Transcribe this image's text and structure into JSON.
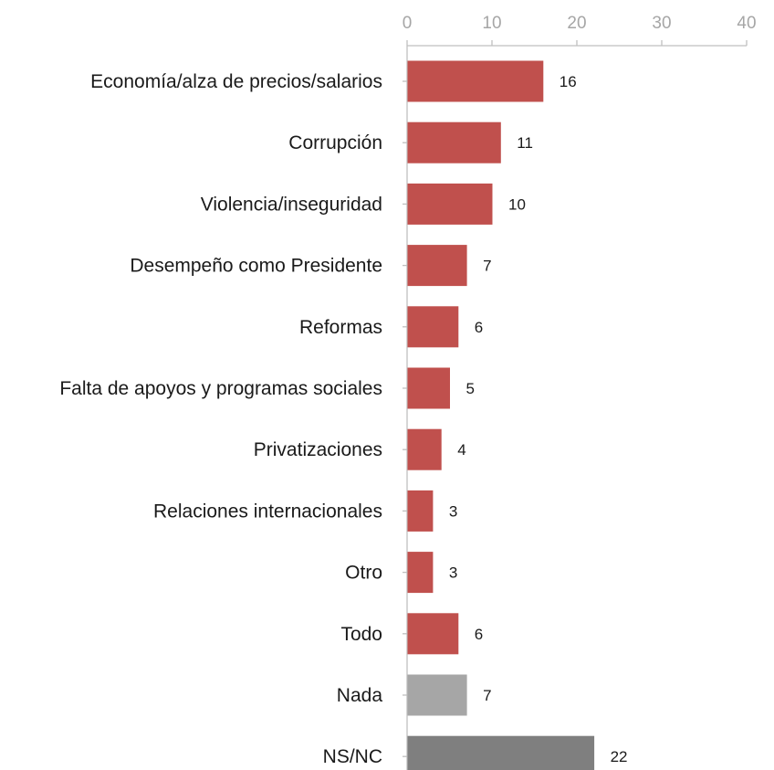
{
  "chart_data": {
    "type": "bar",
    "orientation": "horizontal",
    "categories": [
      "Economía/alza de precios/salarios",
      "Corrupción",
      "Violencia/inseguridad",
      "Desempeño como Presidente",
      "Reformas",
      "Falta de apoyos y programas sociales",
      "Privatizaciones",
      "Relaciones internacionales",
      "Otro",
      "Todo",
      "Nada",
      "NS/NC"
    ],
    "values": [
      16,
      11,
      10,
      7,
      6,
      5,
      4,
      3,
      3,
      6,
      7,
      22
    ],
    "colors": [
      "#c0504d",
      "#c0504d",
      "#c0504d",
      "#c0504d",
      "#c0504d",
      "#c0504d",
      "#c0504d",
      "#c0504d",
      "#c0504d",
      "#c0504d",
      "#a6a6a6",
      "#7f7f7f"
    ],
    "xlim": [
      0,
      40
    ],
    "xticks": [
      0,
      10,
      20,
      30,
      40
    ],
    "x_axis_position": "top",
    "grid": false,
    "legend": "none",
    "title": "",
    "xlabel": "",
    "ylabel": ""
  }
}
